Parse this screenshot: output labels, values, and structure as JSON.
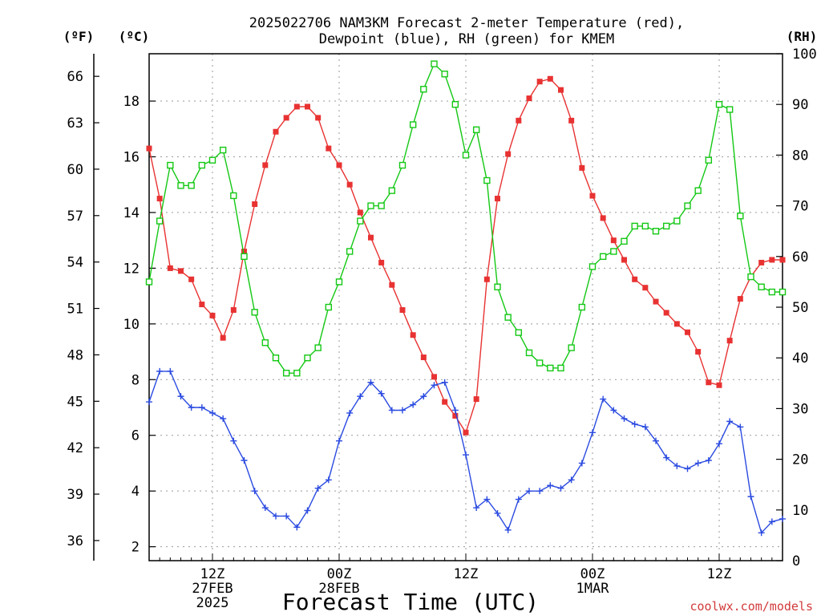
{
  "chart_data": {
    "type": "line",
    "title_lines": [
      "2025022706 NAM3KM Forecast 2-meter Temperature (red),",
      "Dewpoint (blue), RH (green) for KMEM"
    ],
    "xlabel": "Forecast Time (UTC)",
    "watermark": "coolwx.com/models",
    "units": {
      "fahrenheit": "(ºF)",
      "celsius": "(ºC)",
      "rh": "(RH)"
    },
    "x_range": [
      0,
      60
    ],
    "x_ticks": [
      {
        "x": 6,
        "lines": [
          "12Z",
          "27FEB",
          "2025"
        ]
      },
      {
        "x": 18,
        "lines": [
          "00Z",
          "28FEB"
        ]
      },
      {
        "x": 30,
        "lines": [
          "12Z"
        ]
      },
      {
        "x": 42,
        "lines": [
          "00Z",
          "1MAR"
        ]
      },
      {
        "x": 54,
        "lines": [
          "12Z"
        ]
      }
    ],
    "y_left_celsius": {
      "range": [
        1.5,
        19.7
      ],
      "ticks": [
        2,
        4,
        6,
        8,
        10,
        12,
        14,
        16,
        18
      ]
    },
    "y_left_fahrenheit": {
      "ticks": [
        36,
        39,
        42,
        45,
        48,
        51,
        54,
        57,
        60,
        63,
        66
      ]
    },
    "y_right_rh": {
      "range": [
        0,
        100
      ],
      "ticks": [
        0,
        10,
        20,
        30,
        40,
        50,
        60,
        70,
        80,
        90,
        100
      ]
    },
    "grid": true,
    "x_hours": [
      0,
      1,
      2,
      3,
      4,
      5,
      6,
      7,
      8,
      9,
      10,
      11,
      12,
      13,
      14,
      15,
      16,
      17,
      18,
      19,
      20,
      21,
      22,
      23,
      24,
      25,
      26,
      27,
      28,
      29,
      30,
      31,
      32,
      33,
      34,
      35,
      36,
      37,
      38,
      39,
      40,
      41,
      42,
      43,
      44,
      45,
      46,
      47,
      48,
      49,
      50,
      51,
      52,
      53,
      54,
      55,
      56,
      57,
      58,
      59,
      60
    ],
    "series": [
      {
        "name": "Temperature",
        "axis": "celsius",
        "color": "#e83232",
        "marker": "filled-square",
        "values": [
          16.3,
          14.5,
          12.0,
          11.9,
          11.6,
          10.7,
          10.3,
          9.5,
          10.5,
          12.6,
          14.3,
          15.7,
          16.9,
          17.4,
          17.8,
          17.8,
          17.4,
          16.3,
          15.7,
          15.0,
          14.0,
          13.1,
          12.2,
          11.4,
          10.5,
          9.6,
          8.8,
          8.1,
          7.2,
          6.7,
          6.1,
          7.3,
          11.6,
          14.5,
          16.1,
          17.3,
          18.1,
          18.7,
          18.8,
          18.4,
          17.3,
          15.6,
          14.6,
          13.8,
          13.0,
          12.3,
          11.6,
          11.3,
          10.8,
          10.4,
          10.0,
          9.7,
          9.0,
          7.9,
          7.8,
          9.4,
          10.9,
          11.7,
          12.2,
          12.3,
          12.3
        ]
      },
      {
        "name": "Dewpoint",
        "axis": "celsius",
        "color": "#2a4ae0",
        "marker": "plus",
        "values": [
          7.2,
          8.3,
          8.3,
          7.4,
          7.0,
          7.0,
          6.8,
          6.6,
          5.8,
          5.1,
          4.0,
          3.4,
          3.1,
          3.1,
          2.7,
          3.3,
          4.1,
          4.4,
          5.8,
          6.8,
          7.4,
          7.9,
          7.5,
          6.9,
          6.9,
          7.1,
          7.4,
          7.8,
          7.9,
          6.9,
          5.3,
          3.4,
          3.7,
          3.2,
          2.6,
          3.7,
          4.0,
          4.0,
          4.2,
          4.1,
          4.4,
          5.0,
          6.1,
          7.3,
          6.9,
          6.6,
          6.4,
          6.3,
          5.8,
          5.2,
          4.9,
          4.8,
          5.0,
          5.1,
          5.7,
          6.5,
          6.3,
          3.8,
          2.5,
          2.9,
          3.0
        ]
      },
      {
        "name": "RH",
        "axis": "rh",
        "color": "#14c814",
        "marker": "open-square",
        "values": [
          55,
          67,
          78,
          74,
          74,
          78,
          79,
          81,
          72,
          60,
          49,
          43,
          40,
          37,
          37,
          40,
          42,
          50,
          55,
          61,
          67,
          70,
          70,
          73,
          78,
          86,
          93,
          98,
          96,
          90,
          80,
          85,
          75,
          54,
          48,
          45,
          41,
          39,
          38,
          38,
          42,
          50,
          58,
          60,
          61,
          63,
          66,
          66,
          65,
          66,
          67,
          70,
          73,
          79,
          90,
          89,
          68,
          56,
          54,
          53,
          53
        ]
      }
    ]
  }
}
